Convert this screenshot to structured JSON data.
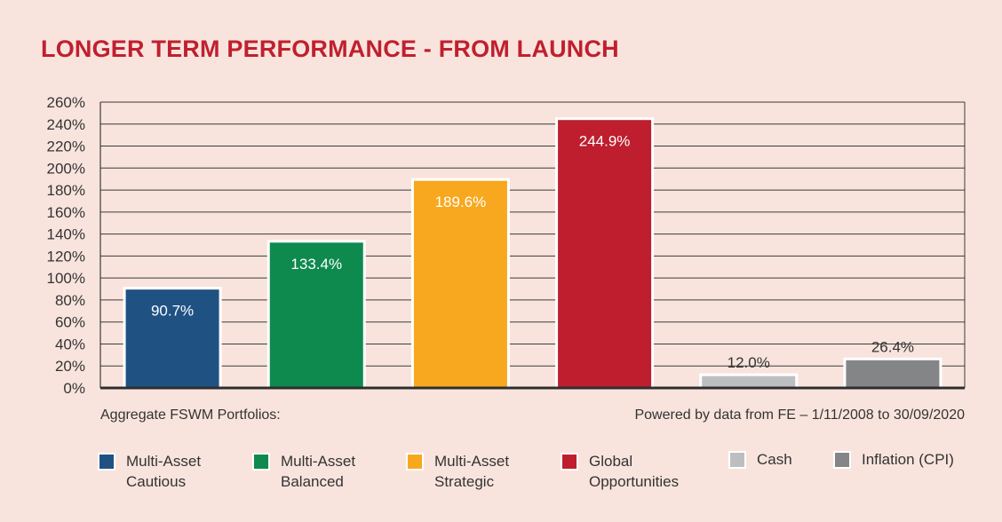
{
  "chart_data": {
    "type": "bar",
    "title": "LONGER TERM PERFORMANCE - FROM LAUNCH",
    "categories": [
      "Multi-Asset Cautious",
      "Multi-Asset Balanced",
      "Multi-Asset Strategic",
      "Global Opportunities",
      "Cash",
      "Inflation (CPI)"
    ],
    "values": [
      90.7,
      133.4,
      189.6,
      244.9,
      12.0,
      26.4
    ],
    "value_labels": [
      "90.7%",
      "133.4%",
      "189.6%",
      "244.9%",
      "12.0%",
      "26.4%"
    ],
    "colors": [
      "#1f5283",
      "#0e8a4e",
      "#f8a81e",
      "#be1e2d",
      "#bdbec0",
      "#838586"
    ],
    "label_colors": [
      "#ffffff",
      "#ffffff",
      "#ffffff",
      "#ffffff",
      "#333333",
      "#ffffff"
    ],
    "ylim": [
      0,
      260
    ],
    "yticks": [
      0,
      20,
      40,
      60,
      80,
      100,
      120,
      140,
      160,
      180,
      200,
      220,
      240,
      260
    ],
    "ytick_labels": [
      "0%",
      "20%",
      "40%",
      "60%",
      "80%",
      "100%",
      "120%",
      "140%",
      "160%",
      "180%",
      "200%",
      "220%",
      "240%",
      "260%"
    ],
    "xlabel": "",
    "ylabel": "",
    "grid": true
  },
  "footnotes": {
    "left": "Aggregate FSWM Portfolios:",
    "right": "Powered by data from FE – 1/11/2008 to 30/09/2020"
  },
  "legend": [
    {
      "line1": "Multi-Asset",
      "line2": "Cautious",
      "color": "#1f5283"
    },
    {
      "line1": "Multi-Asset",
      "line2": "Balanced",
      "color": "#0e8a4e"
    },
    {
      "line1": "Multi-Asset",
      "line2": "Strategic",
      "color": "#f8a81e"
    },
    {
      "line1": "Global",
      "line2": "Opportunities",
      "color": "#be1e2d"
    },
    {
      "line1": "Cash",
      "line2": "",
      "color": "#bdbec0"
    },
    {
      "line1": "Inflation (CPI)",
      "line2": "",
      "color": "#838586"
    }
  ]
}
